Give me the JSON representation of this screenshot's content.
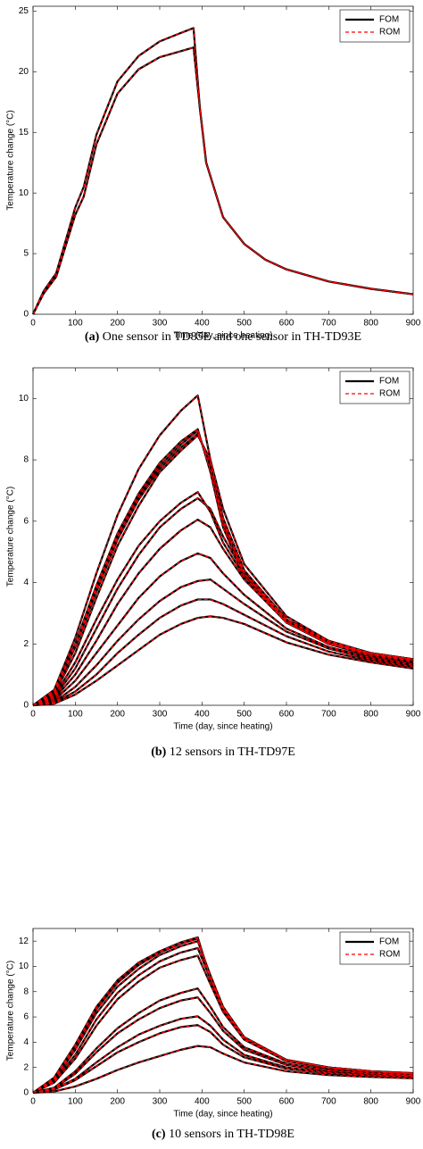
{
  "chart_data": [
    {
      "type": "line",
      "xlabel": "Time (day, since heating)",
      "ylabel": "Temperature change (°C)",
      "caption_label": "(a)",
      "caption": "One sensor in TD85E and one sensor in TH-TD93E",
      "legend": "northeast",
      "x": [
        0,
        25,
        55,
        100,
        120,
        150,
        200,
        250,
        300,
        350,
        380,
        395,
        410,
        450,
        500,
        550,
        600,
        700,
        800,
        900
      ],
      "xlim": [
        0,
        900
      ],
      "xticks": [
        0,
        100,
        200,
        300,
        400,
        500,
        600,
        700,
        800,
        900
      ],
      "ylim": [
        0,
        25.4
      ],
      "yticks": [
        0,
        5,
        10,
        15,
        20,
        25
      ],
      "series": [
        {
          "name": "FOM",
          "color": "#000000",
          "style": "solid",
          "values": [
            [
              0,
              1.9,
              3.4,
              8.8,
              10.5,
              14.8,
              19.2,
              21.3,
              22.5,
              23.2,
              23.6,
              17,
              12.5,
              8,
              5.8,
              4.5,
              3.7,
              2.7,
              2.1,
              1.65
            ],
            [
              0,
              1.7,
              3.1,
              8.2,
              9.7,
              14,
              18.2,
              20.2,
              21.2,
              21.7,
              22.0,
              17,
              12.5,
              8,
              5.8,
              4.5,
              3.7,
              2.7,
              2.1,
              1.65
            ]
          ]
        },
        {
          "name": "ROM",
          "color": "#ff0000",
          "style": "dashed",
          "values": [
            [
              0,
              1.9,
              3.4,
              8.8,
              10.5,
              14.8,
              19.2,
              21.3,
              22.5,
              23.2,
              23.6,
              17,
              12.5,
              8,
              5.8,
              4.5,
              3.7,
              2.7,
              2.1,
              1.65
            ],
            [
              0,
              1.7,
              3.1,
              8.2,
              9.7,
              14,
              18.2,
              20.2,
              21.2,
              21.7,
              22.0,
              17,
              12.5,
              8,
              5.8,
              4.5,
              3.7,
              2.7,
              2.1,
              1.65
            ]
          ]
        }
      ]
    },
    {
      "type": "line",
      "xlabel": "Time (day, since heating)",
      "ylabel": "Temperature change (°C)",
      "caption_label": "(b)",
      "caption": "12 sensors in TH-TD97E",
      "legend": "northeast",
      "x": [
        0,
        50,
        100,
        150,
        200,
        250,
        300,
        350,
        390,
        420,
        450,
        500,
        600,
        700,
        800,
        900
      ],
      "xlim": [
        0,
        900
      ],
      "xticks": [
        0,
        100,
        200,
        300,
        400,
        500,
        600,
        700,
        800,
        900
      ],
      "ylim": [
        0,
        11
      ],
      "yticks": [
        0,
        2,
        4,
        6,
        8,
        10
      ],
      "series": [
        {
          "name": "FOM",
          "color": "#000000",
          "style": "solid",
          "values": [
            [
              0,
              0.5,
              2.2,
              4.3,
              6.2,
              7.7,
              8.8,
              9.6,
              10.1,
              8.0,
              6.0,
              4.3,
              2.7,
              2.0,
              1.7,
              1.5
            ],
            [
              0,
              0.45,
              2.0,
              3.9,
              5.6,
              6.9,
              7.9,
              8.6,
              9.0,
              7.6,
              5.8,
              4.2,
              2.7,
              2.0,
              1.7,
              1.5
            ],
            [
              0,
              0.42,
              1.95,
              3.8,
              5.5,
              6.8,
              7.8,
              8.5,
              8.95,
              7.7,
              5.9,
              4.3,
              2.75,
              2.05,
              1.7,
              1.5
            ],
            [
              0,
              0.4,
              1.9,
              3.7,
              5.4,
              6.7,
              7.7,
              8.4,
              8.85,
              7.9,
              6.1,
              4.4,
              2.8,
              2.1,
              1.7,
              1.5
            ],
            [
              0,
              0.35,
              1.7,
              3.5,
              5.2,
              6.5,
              7.6,
              8.3,
              8.8,
              8.0,
              6.4,
              4.6,
              2.9,
              2.1,
              1.7,
              1.45
            ],
            [
              0,
              0.3,
              1.4,
              2.8,
              4.1,
              5.2,
              6.0,
              6.6,
              6.95,
              6.3,
              5.3,
              4.2,
              2.7,
              2.0,
              1.65,
              1.45
            ],
            [
              0,
              0.25,
              1.2,
              2.5,
              3.8,
              4.9,
              5.8,
              6.4,
              6.75,
              6.4,
              5.5,
              4.3,
              2.8,
              2.05,
              1.65,
              1.45
            ],
            [
              0,
              0.2,
              1.0,
              2.1,
              3.3,
              4.3,
              5.1,
              5.7,
              6.05,
              5.8,
              5.1,
              4.1,
              2.7,
              2.0,
              1.6,
              1.4
            ],
            [
              0,
              0.15,
              0.8,
              1.7,
              2.6,
              3.5,
              4.2,
              4.7,
              4.95,
              4.8,
              4.3,
              3.6,
              2.5,
              1.9,
              1.55,
              1.35
            ],
            [
              0,
              0.1,
              0.6,
              1.3,
              2.1,
              2.8,
              3.4,
              3.85,
              4.05,
              4.1,
              3.8,
              3.3,
              2.4,
              1.85,
              1.5,
              1.3
            ],
            [
              0,
              0.08,
              0.45,
              1.0,
              1.7,
              2.3,
              2.85,
              3.25,
              3.45,
              3.45,
              3.3,
              2.95,
              2.25,
              1.75,
              1.45,
              1.25
            ],
            [
              0,
              0.05,
              0.35,
              0.8,
              1.3,
              1.8,
              2.3,
              2.65,
              2.85,
              2.9,
              2.85,
              2.65,
              2.05,
              1.65,
              1.4,
              1.2
            ]
          ]
        },
        {
          "name": "ROM",
          "color": "#ff0000",
          "style": "dashed",
          "values": [
            [
              0,
              0.5,
              2.2,
              4.3,
              6.2,
              7.7,
              8.8,
              9.6,
              10.1,
              8.0,
              6.0,
              4.3,
              2.7,
              2.0,
              1.7,
              1.5
            ],
            [
              0,
              0.45,
              2.0,
              3.9,
              5.6,
              6.9,
              7.9,
              8.6,
              9.0,
              7.6,
              5.8,
              4.2,
              2.7,
              2.0,
              1.7,
              1.5
            ],
            [
              0,
              0.42,
              1.95,
              3.8,
              5.5,
              6.8,
              7.8,
              8.5,
              8.95,
              7.7,
              5.9,
              4.3,
              2.75,
              2.05,
              1.7,
              1.5
            ],
            [
              0,
              0.4,
              1.9,
              3.7,
              5.4,
              6.7,
              7.7,
              8.4,
              8.85,
              7.9,
              6.1,
              4.4,
              2.8,
              2.1,
              1.7,
              1.5
            ],
            [
              0,
              0.35,
              1.7,
              3.5,
              5.2,
              6.5,
              7.6,
              8.3,
              8.8,
              8.0,
              6.4,
              4.6,
              2.9,
              2.1,
              1.7,
              1.45
            ],
            [
              0,
              0.3,
              1.4,
              2.8,
              4.1,
              5.2,
              6.0,
              6.6,
              6.95,
              6.3,
              5.3,
              4.2,
              2.7,
              2.0,
              1.65,
              1.45
            ],
            [
              0,
              0.25,
              1.2,
              2.5,
              3.8,
              4.9,
              5.8,
              6.4,
              6.75,
              6.4,
              5.5,
              4.3,
              2.8,
              2.05,
              1.65,
              1.45
            ],
            [
              0,
              0.2,
              1.0,
              2.1,
              3.3,
              4.3,
              5.1,
              5.7,
              6.05,
              5.8,
              5.1,
              4.1,
              2.7,
              2.0,
              1.6,
              1.4
            ],
            [
              0,
              0.15,
              0.8,
              1.7,
              2.6,
              3.5,
              4.2,
              4.7,
              4.95,
              4.8,
              4.3,
              3.6,
              2.5,
              1.9,
              1.55,
              1.35
            ],
            [
              0,
              0.1,
              0.6,
              1.3,
              2.1,
              2.8,
              3.4,
              3.85,
              4.05,
              4.1,
              3.8,
              3.3,
              2.4,
              1.85,
              1.5,
              1.3
            ],
            [
              0,
              0.08,
              0.45,
              1.0,
              1.7,
              2.3,
              2.85,
              3.25,
              3.45,
              3.45,
              3.3,
              2.95,
              2.25,
              1.75,
              1.45,
              1.25
            ],
            [
              0,
              0.05,
              0.35,
              0.8,
              1.3,
              1.8,
              2.3,
              2.65,
              2.85,
              2.9,
              2.85,
              2.65,
              2.05,
              1.65,
              1.4,
              1.2
            ]
          ]
        }
      ]
    },
    {
      "type": "line",
      "xlabel": "Time (day, since heating)",
      "ylabel": "Temperature change (°C)",
      "caption_label": "(c)",
      "caption": "10 sensors in TH-TD98E",
      "legend": "northeast",
      "x": [
        0,
        50,
        100,
        150,
        200,
        250,
        300,
        350,
        390,
        420,
        450,
        500,
        600,
        700,
        800,
        900
      ],
      "xlim": [
        0,
        900
      ],
      "xticks": [
        0,
        100,
        200,
        300,
        400,
        500,
        600,
        700,
        800,
        900
      ],
      "ylim": [
        0,
        13
      ],
      "yticks": [
        0,
        2,
        4,
        6,
        8,
        10,
        12
      ],
      "series": [
        {
          "name": "FOM",
          "color": "#000000",
          "style": "solid",
          "values": [
            [
              0,
              1.2,
              3.8,
              6.8,
              8.9,
              10.3,
              11.2,
              11.9,
              12.3,
              9.0,
              6.6,
              4.3,
              2.6,
              2.0,
              1.7,
              1.55
            ],
            [
              0,
              1.1,
              3.6,
              6.6,
              8.7,
              10.1,
              11.1,
              11.8,
              12.2,
              9.1,
              6.7,
              4.4,
              2.6,
              2.0,
              1.7,
              1.55
            ],
            [
              0,
              1.0,
              3.4,
              6.3,
              8.4,
              9.8,
              10.9,
              11.6,
              12.0,
              9.3,
              6.8,
              4.4,
              2.6,
              2.0,
              1.7,
              1.5
            ],
            [
              0,
              0.9,
              3.0,
              5.8,
              7.9,
              9.3,
              10.4,
              11.1,
              11.45,
              9.0,
              6.7,
              4.3,
              2.6,
              2.0,
              1.7,
              1.5
            ],
            [
              0,
              0.8,
              2.7,
              5.3,
              7.4,
              8.8,
              9.9,
              10.5,
              10.85,
              8.6,
              6.4,
              4.2,
              2.5,
              1.95,
              1.65,
              1.5
            ],
            [
              0,
              0.4,
              1.7,
              3.5,
              5.1,
              6.3,
              7.3,
              7.9,
              8.25,
              6.8,
              5.2,
              3.6,
              2.3,
              1.8,
              1.55,
              1.4
            ],
            [
              0,
              0.35,
              1.5,
              3.2,
              4.7,
              5.8,
              6.7,
              7.3,
              7.55,
              6.3,
              4.9,
              3.4,
              2.2,
              1.75,
              1.5,
              1.35
            ],
            [
              0,
              0.3,
              1.1,
              2.4,
              3.6,
              4.6,
              5.3,
              5.85,
              6.05,
              5.3,
              4.2,
              3.0,
              2.0,
              1.6,
              1.4,
              1.3
            ],
            [
              0,
              0.25,
              1.0,
              2.1,
              3.2,
              4.0,
              4.7,
              5.2,
              5.35,
              4.8,
              3.8,
              2.8,
              1.9,
              1.55,
              1.35,
              1.25
            ],
            [
              0,
              0.1,
              0.5,
              1.1,
              1.8,
              2.4,
              2.9,
              3.4,
              3.7,
              3.6,
              3.1,
              2.4,
              1.7,
              1.4,
              1.25,
              1.15
            ]
          ]
        },
        {
          "name": "ROM",
          "color": "#ff0000",
          "style": "dashed",
          "values": [
            [
              0,
              1.2,
              3.8,
              6.8,
              8.9,
              10.3,
              11.2,
              11.9,
              12.3,
              9.0,
              6.6,
              4.3,
              2.6,
              2.0,
              1.7,
              1.55
            ],
            [
              0,
              1.1,
              3.6,
              6.6,
              8.7,
              10.1,
              11.1,
              11.8,
              12.2,
              9.1,
              6.7,
              4.4,
              2.6,
              2.0,
              1.7,
              1.55
            ],
            [
              0,
              1.0,
              3.4,
              6.3,
              8.4,
              9.8,
              10.9,
              11.6,
              12.0,
              9.3,
              6.8,
              4.4,
              2.6,
              2.0,
              1.7,
              1.5
            ],
            [
              0,
              0.9,
              3.0,
              5.8,
              7.9,
              9.3,
              10.4,
              11.1,
              11.45,
              9.0,
              6.7,
              4.3,
              2.6,
              2.0,
              1.7,
              1.5
            ],
            [
              0,
              0.8,
              2.7,
              5.3,
              7.4,
              8.8,
              9.9,
              10.5,
              10.85,
              8.6,
              6.4,
              4.2,
              2.5,
              1.95,
              1.65,
              1.5
            ],
            [
              0,
              0.4,
              1.7,
              3.5,
              5.1,
              6.3,
              7.3,
              7.9,
              8.25,
              6.8,
              5.2,
              3.6,
              2.3,
              1.8,
              1.55,
              1.4
            ],
            [
              0,
              0.35,
              1.5,
              3.2,
              4.7,
              5.8,
              6.7,
              7.3,
              7.55,
              6.3,
              4.9,
              3.4,
              2.2,
              1.75,
              1.5,
              1.35
            ],
            [
              0,
              0.3,
              1.1,
              2.4,
              3.6,
              4.6,
              5.3,
              5.85,
              6.05,
              5.3,
              4.2,
              3.0,
              2.0,
              1.6,
              1.4,
              1.3
            ],
            [
              0,
              0.25,
              1.0,
              2.1,
              3.2,
              4.0,
              4.7,
              5.2,
              5.35,
              4.8,
              3.8,
              2.8,
              1.9,
              1.55,
              1.35,
              1.25
            ],
            [
              0,
              0.1,
              0.5,
              1.1,
              1.8,
              2.4,
              2.9,
              3.4,
              3.7,
              3.6,
              3.1,
              2.4,
              1.7,
              1.4,
              1.25,
              1.15
            ]
          ]
        }
      ]
    }
  ]
}
